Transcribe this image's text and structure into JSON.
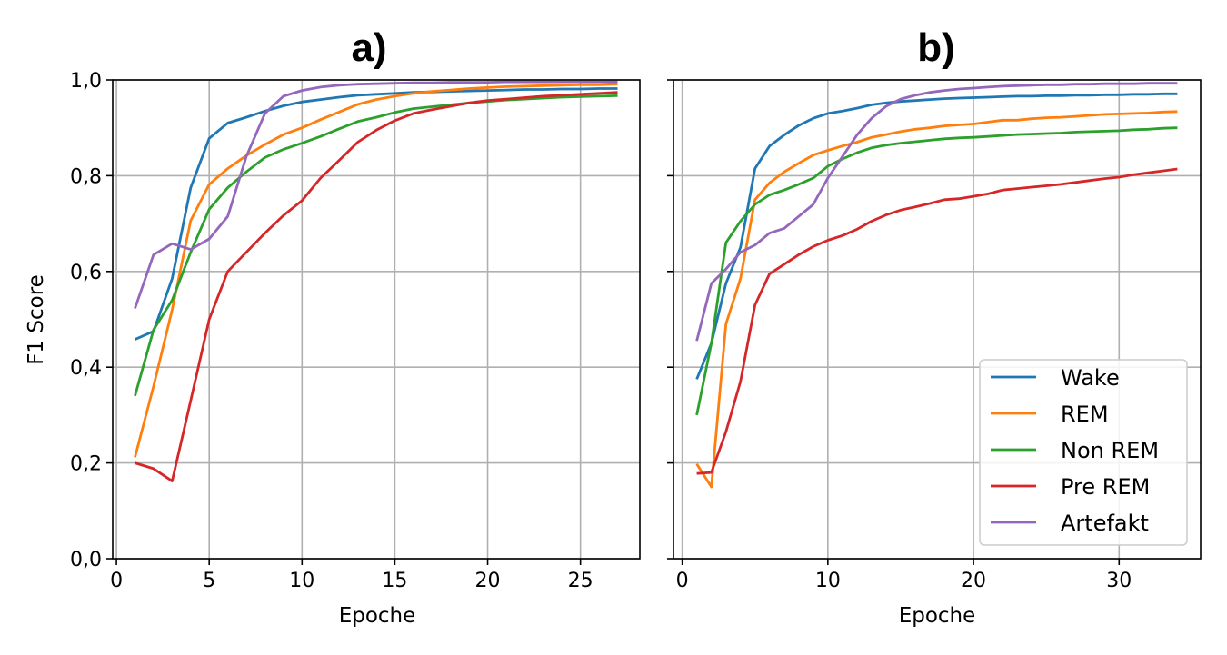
{
  "chart_data": [
    {
      "type": "line",
      "title": "a)",
      "xlabel": "Epoche",
      "ylabel": "F1 Score",
      "xlim": [
        -0.2,
        28.2
      ],
      "ylim": [
        0,
        1
      ],
      "xticks": [
        0,
        5,
        10,
        15,
        20,
        25
      ],
      "yticks": [
        "0,0",
        "0,2",
        "0,4",
        "0,6",
        "0,8",
        "1,0"
      ],
      "grid": true,
      "x": [
        1,
        2,
        3,
        4,
        5,
        6,
        7,
        8,
        9,
        10,
        11,
        12,
        13,
        14,
        15,
        16,
        17,
        18,
        19,
        20,
        21,
        22,
        23,
        24,
        25,
        26,
        27
      ],
      "series": [
        {
          "name": "Wake",
          "color": "#1f77b4",
          "values": [
            0.458,
            0.475,
            0.585,
            0.775,
            0.878,
            0.91,
            0.922,
            0.935,
            0.946,
            0.954,
            0.959,
            0.964,
            0.968,
            0.97,
            0.972,
            0.974,
            0.975,
            0.976,
            0.977,
            0.978,
            0.979,
            0.98,
            0.98,
            0.981,
            0.981,
            0.982,
            0.982
          ]
        },
        {
          "name": "REM",
          "color": "#ff7f0e",
          "values": [
            0.212,
            0.36,
            0.52,
            0.706,
            0.782,
            0.815,
            0.842,
            0.865,
            0.886,
            0.9,
            0.917,
            0.933,
            0.949,
            0.959,
            0.966,
            0.972,
            0.976,
            0.979,
            0.982,
            0.984,
            0.986,
            0.987,
            0.988,
            0.989,
            0.99,
            0.99,
            0.991
          ]
        },
        {
          "name": "Non REM",
          "color": "#2ca02c",
          "values": [
            0.34,
            0.478,
            0.54,
            0.64,
            0.73,
            0.775,
            0.808,
            0.838,
            0.855,
            0.868,
            0.882,
            0.898,
            0.913,
            0.922,
            0.932,
            0.94,
            0.944,
            0.948,
            0.952,
            0.955,
            0.958,
            0.96,
            0.962,
            0.964,
            0.965,
            0.966,
            0.967
          ]
        },
        {
          "name": "Pre REM",
          "color": "#d62728",
          "values": [
            0.2,
            0.188,
            0.162,
            0.33,
            0.5,
            0.6,
            0.64,
            0.68,
            0.717,
            0.748,
            0.795,
            0.832,
            0.87,
            0.895,
            0.915,
            0.93,
            0.938,
            0.945,
            0.952,
            0.957,
            0.96,
            0.963,
            0.966,
            0.968,
            0.97,
            0.972,
            0.974
          ]
        },
        {
          "name": "Artefakt",
          "color": "#9467bd",
          "values": [
            0.523,
            0.635,
            0.658,
            0.646,
            0.668,
            0.715,
            0.84,
            0.93,
            0.966,
            0.978,
            0.985,
            0.989,
            0.991,
            0.992,
            0.993,
            0.994,
            0.994,
            0.995,
            0.995,
            0.995,
            0.996,
            0.996,
            0.996,
            0.996,
            0.996,
            0.996,
            0.996
          ]
        }
      ]
    },
    {
      "type": "line",
      "title": "b)",
      "xlabel": "Epoche",
      "xlim": [
        -0.6,
        35.6
      ],
      "ylim": [
        0,
        1
      ],
      "xticks": [
        0,
        10,
        20,
        30
      ],
      "grid": true,
      "legend": "lower-right",
      "x": [
        1,
        2,
        3,
        4,
        5,
        6,
        7,
        8,
        9,
        10,
        11,
        12,
        13,
        14,
        15,
        16,
        17,
        18,
        19,
        20,
        21,
        22,
        23,
        24,
        25,
        26,
        27,
        28,
        29,
        30,
        31,
        32,
        33,
        34
      ],
      "series": [
        {
          "name": "Wake",
          "color": "#1f77b4",
          "values": [
            0.375,
            0.45,
            0.575,
            0.65,
            0.815,
            0.862,
            0.885,
            0.905,
            0.92,
            0.93,
            0.935,
            0.941,
            0.948,
            0.952,
            0.955,
            0.957,
            0.959,
            0.961,
            0.962,
            0.963,
            0.964,
            0.965,
            0.966,
            0.966,
            0.967,
            0.967,
            0.968,
            0.968,
            0.969,
            0.969,
            0.97,
            0.97,
            0.971,
            0.971
          ]
        },
        {
          "name": "REM",
          "color": "#ff7f0e",
          "values": [
            0.198,
            0.15,
            0.49,
            0.585,
            0.75,
            0.785,
            0.808,
            0.826,
            0.843,
            0.853,
            0.862,
            0.87,
            0.88,
            0.886,
            0.892,
            0.897,
            0.9,
            0.904,
            0.906,
            0.908,
            0.912,
            0.916,
            0.916,
            0.919,
            0.921,
            0.922,
            0.924,
            0.926,
            0.928,
            0.929,
            0.93,
            0.931,
            0.933,
            0.934
          ]
        },
        {
          "name": "Non REM",
          "color": "#2ca02c",
          "values": [
            0.3,
            0.45,
            0.66,
            0.705,
            0.74,
            0.76,
            0.77,
            0.782,
            0.795,
            0.82,
            0.835,
            0.848,
            0.858,
            0.864,
            0.868,
            0.871,
            0.874,
            0.877,
            0.879,
            0.88,
            0.882,
            0.884,
            0.886,
            0.887,
            0.888,
            0.889,
            0.891,
            0.892,
            0.893,
            0.894,
            0.896,
            0.897,
            0.899,
            0.9
          ]
        },
        {
          "name": "Pre REM",
          "color": "#d62728",
          "values": [
            0.178,
            0.18,
            0.265,
            0.37,
            0.53,
            0.595,
            0.615,
            0.635,
            0.652,
            0.665,
            0.675,
            0.688,
            0.705,
            0.718,
            0.728,
            0.735,
            0.742,
            0.75,
            0.752,
            0.757,
            0.762,
            0.77,
            0.773,
            0.776,
            0.779,
            0.782,
            0.786,
            0.79,
            0.794,
            0.797,
            0.802,
            0.806,
            0.81,
            0.814
          ]
        },
        {
          "name": "Artefakt",
          "color": "#9467bd",
          "values": [
            0.455,
            0.575,
            0.605,
            0.64,
            0.655,
            0.68,
            0.69,
            0.715,
            0.74,
            0.795,
            0.84,
            0.885,
            0.92,
            0.945,
            0.96,
            0.968,
            0.974,
            0.978,
            0.981,
            0.983,
            0.985,
            0.987,
            0.988,
            0.989,
            0.99,
            0.99,
            0.991,
            0.991,
            0.992,
            0.992,
            0.992,
            0.993,
            0.993,
            0.993
          ]
        }
      ]
    }
  ]
}
